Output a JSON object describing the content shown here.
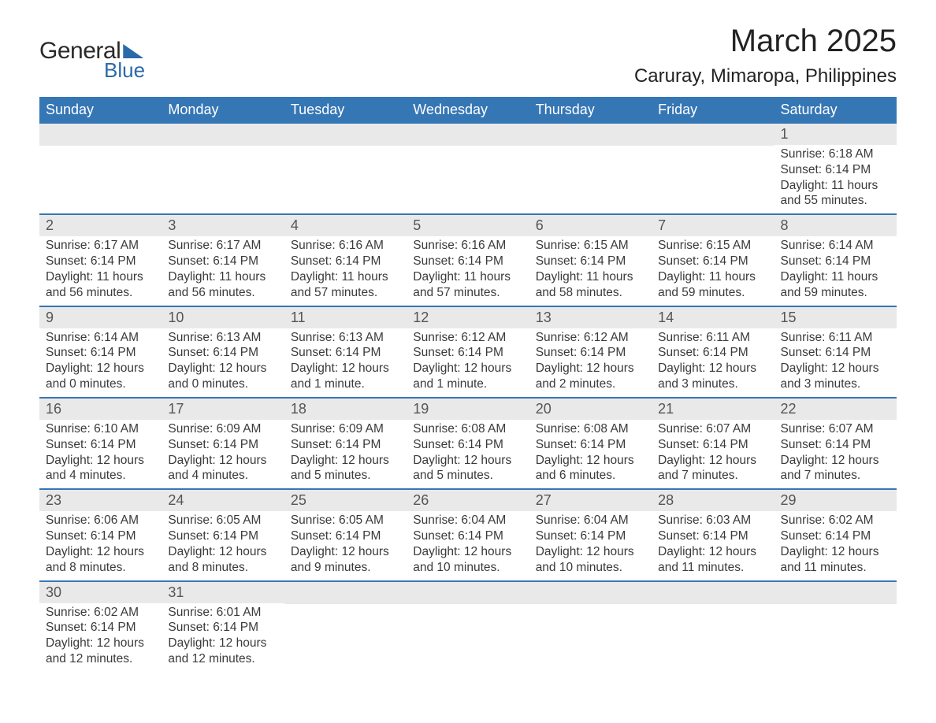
{
  "logo": {
    "word1": "General",
    "word2": "Blue"
  },
  "title": "March 2025",
  "location": "Caruray, Mimaropa, Philippines",
  "colors": {
    "header_bg": "#3576b5",
    "header_text": "#ffffff",
    "daynum_bg": "#e9e9e9",
    "text": "#3a3a3a",
    "logo_blue": "#2b6aa8",
    "week_border": "#3576b5",
    "page_bg": "#ffffff"
  },
  "typography": {
    "title_fontsize": 40,
    "location_fontsize": 24,
    "dayhead_fontsize": 18,
    "daynum_fontsize": 18,
    "detail_fontsize": 15.5,
    "font_family": "Arial"
  },
  "day_headers": [
    "Sunday",
    "Monday",
    "Tuesday",
    "Wednesday",
    "Thursday",
    "Friday",
    "Saturday"
  ],
  "weeks": [
    [
      {
        "day": "",
        "sunrise": "",
        "sunset": "",
        "daylight": ""
      },
      {
        "day": "",
        "sunrise": "",
        "sunset": "",
        "daylight": ""
      },
      {
        "day": "",
        "sunrise": "",
        "sunset": "",
        "daylight": ""
      },
      {
        "day": "",
        "sunrise": "",
        "sunset": "",
        "daylight": ""
      },
      {
        "day": "",
        "sunrise": "",
        "sunset": "",
        "daylight": ""
      },
      {
        "day": "",
        "sunrise": "",
        "sunset": "",
        "daylight": ""
      },
      {
        "day": "1",
        "sunrise": "Sunrise: 6:18 AM",
        "sunset": "Sunset: 6:14 PM",
        "daylight": "Daylight: 11 hours and 55 minutes."
      }
    ],
    [
      {
        "day": "2",
        "sunrise": "Sunrise: 6:17 AM",
        "sunset": "Sunset: 6:14 PM",
        "daylight": "Daylight: 11 hours and 56 minutes."
      },
      {
        "day": "3",
        "sunrise": "Sunrise: 6:17 AM",
        "sunset": "Sunset: 6:14 PM",
        "daylight": "Daylight: 11 hours and 56 minutes."
      },
      {
        "day": "4",
        "sunrise": "Sunrise: 6:16 AM",
        "sunset": "Sunset: 6:14 PM",
        "daylight": "Daylight: 11 hours and 57 minutes."
      },
      {
        "day": "5",
        "sunrise": "Sunrise: 6:16 AM",
        "sunset": "Sunset: 6:14 PM",
        "daylight": "Daylight: 11 hours and 57 minutes."
      },
      {
        "day": "6",
        "sunrise": "Sunrise: 6:15 AM",
        "sunset": "Sunset: 6:14 PM",
        "daylight": "Daylight: 11 hours and 58 minutes."
      },
      {
        "day": "7",
        "sunrise": "Sunrise: 6:15 AM",
        "sunset": "Sunset: 6:14 PM",
        "daylight": "Daylight: 11 hours and 59 minutes."
      },
      {
        "day": "8",
        "sunrise": "Sunrise: 6:14 AM",
        "sunset": "Sunset: 6:14 PM",
        "daylight": "Daylight: 11 hours and 59 minutes."
      }
    ],
    [
      {
        "day": "9",
        "sunrise": "Sunrise: 6:14 AM",
        "sunset": "Sunset: 6:14 PM",
        "daylight": "Daylight: 12 hours and 0 minutes."
      },
      {
        "day": "10",
        "sunrise": "Sunrise: 6:13 AM",
        "sunset": "Sunset: 6:14 PM",
        "daylight": "Daylight: 12 hours and 0 minutes."
      },
      {
        "day": "11",
        "sunrise": "Sunrise: 6:13 AM",
        "sunset": "Sunset: 6:14 PM",
        "daylight": "Daylight: 12 hours and 1 minute."
      },
      {
        "day": "12",
        "sunrise": "Sunrise: 6:12 AM",
        "sunset": "Sunset: 6:14 PM",
        "daylight": "Daylight: 12 hours and 1 minute."
      },
      {
        "day": "13",
        "sunrise": "Sunrise: 6:12 AM",
        "sunset": "Sunset: 6:14 PM",
        "daylight": "Daylight: 12 hours and 2 minutes."
      },
      {
        "day": "14",
        "sunrise": "Sunrise: 6:11 AM",
        "sunset": "Sunset: 6:14 PM",
        "daylight": "Daylight: 12 hours and 3 minutes."
      },
      {
        "day": "15",
        "sunrise": "Sunrise: 6:11 AM",
        "sunset": "Sunset: 6:14 PM",
        "daylight": "Daylight: 12 hours and 3 minutes."
      }
    ],
    [
      {
        "day": "16",
        "sunrise": "Sunrise: 6:10 AM",
        "sunset": "Sunset: 6:14 PM",
        "daylight": "Daylight: 12 hours and 4 minutes."
      },
      {
        "day": "17",
        "sunrise": "Sunrise: 6:09 AM",
        "sunset": "Sunset: 6:14 PM",
        "daylight": "Daylight: 12 hours and 4 minutes."
      },
      {
        "day": "18",
        "sunrise": "Sunrise: 6:09 AM",
        "sunset": "Sunset: 6:14 PM",
        "daylight": "Daylight: 12 hours and 5 minutes."
      },
      {
        "day": "19",
        "sunrise": "Sunrise: 6:08 AM",
        "sunset": "Sunset: 6:14 PM",
        "daylight": "Daylight: 12 hours and 5 minutes."
      },
      {
        "day": "20",
        "sunrise": "Sunrise: 6:08 AM",
        "sunset": "Sunset: 6:14 PM",
        "daylight": "Daylight: 12 hours and 6 minutes."
      },
      {
        "day": "21",
        "sunrise": "Sunrise: 6:07 AM",
        "sunset": "Sunset: 6:14 PM",
        "daylight": "Daylight: 12 hours and 7 minutes."
      },
      {
        "day": "22",
        "sunrise": "Sunrise: 6:07 AM",
        "sunset": "Sunset: 6:14 PM",
        "daylight": "Daylight: 12 hours and 7 minutes."
      }
    ],
    [
      {
        "day": "23",
        "sunrise": "Sunrise: 6:06 AM",
        "sunset": "Sunset: 6:14 PM",
        "daylight": "Daylight: 12 hours and 8 minutes."
      },
      {
        "day": "24",
        "sunrise": "Sunrise: 6:05 AM",
        "sunset": "Sunset: 6:14 PM",
        "daylight": "Daylight: 12 hours and 8 minutes."
      },
      {
        "day": "25",
        "sunrise": "Sunrise: 6:05 AM",
        "sunset": "Sunset: 6:14 PM",
        "daylight": "Daylight: 12 hours and 9 minutes."
      },
      {
        "day": "26",
        "sunrise": "Sunrise: 6:04 AM",
        "sunset": "Sunset: 6:14 PM",
        "daylight": "Daylight: 12 hours and 10 minutes."
      },
      {
        "day": "27",
        "sunrise": "Sunrise: 6:04 AM",
        "sunset": "Sunset: 6:14 PM",
        "daylight": "Daylight: 12 hours and 10 minutes."
      },
      {
        "day": "28",
        "sunrise": "Sunrise: 6:03 AM",
        "sunset": "Sunset: 6:14 PM",
        "daylight": "Daylight: 12 hours and 11 minutes."
      },
      {
        "day": "29",
        "sunrise": "Sunrise: 6:02 AM",
        "sunset": "Sunset: 6:14 PM",
        "daylight": "Daylight: 12 hours and 11 minutes."
      }
    ],
    [
      {
        "day": "30",
        "sunrise": "Sunrise: 6:02 AM",
        "sunset": "Sunset: 6:14 PM",
        "daylight": "Daylight: 12 hours and 12 minutes."
      },
      {
        "day": "31",
        "sunrise": "Sunrise: 6:01 AM",
        "sunset": "Sunset: 6:14 PM",
        "daylight": "Daylight: 12 hours and 12 minutes."
      },
      {
        "day": "",
        "sunrise": "",
        "sunset": "",
        "daylight": ""
      },
      {
        "day": "",
        "sunrise": "",
        "sunset": "",
        "daylight": ""
      },
      {
        "day": "",
        "sunrise": "",
        "sunset": "",
        "daylight": ""
      },
      {
        "day": "",
        "sunrise": "",
        "sunset": "",
        "daylight": ""
      },
      {
        "day": "",
        "sunrise": "",
        "sunset": "",
        "daylight": ""
      }
    ]
  ]
}
